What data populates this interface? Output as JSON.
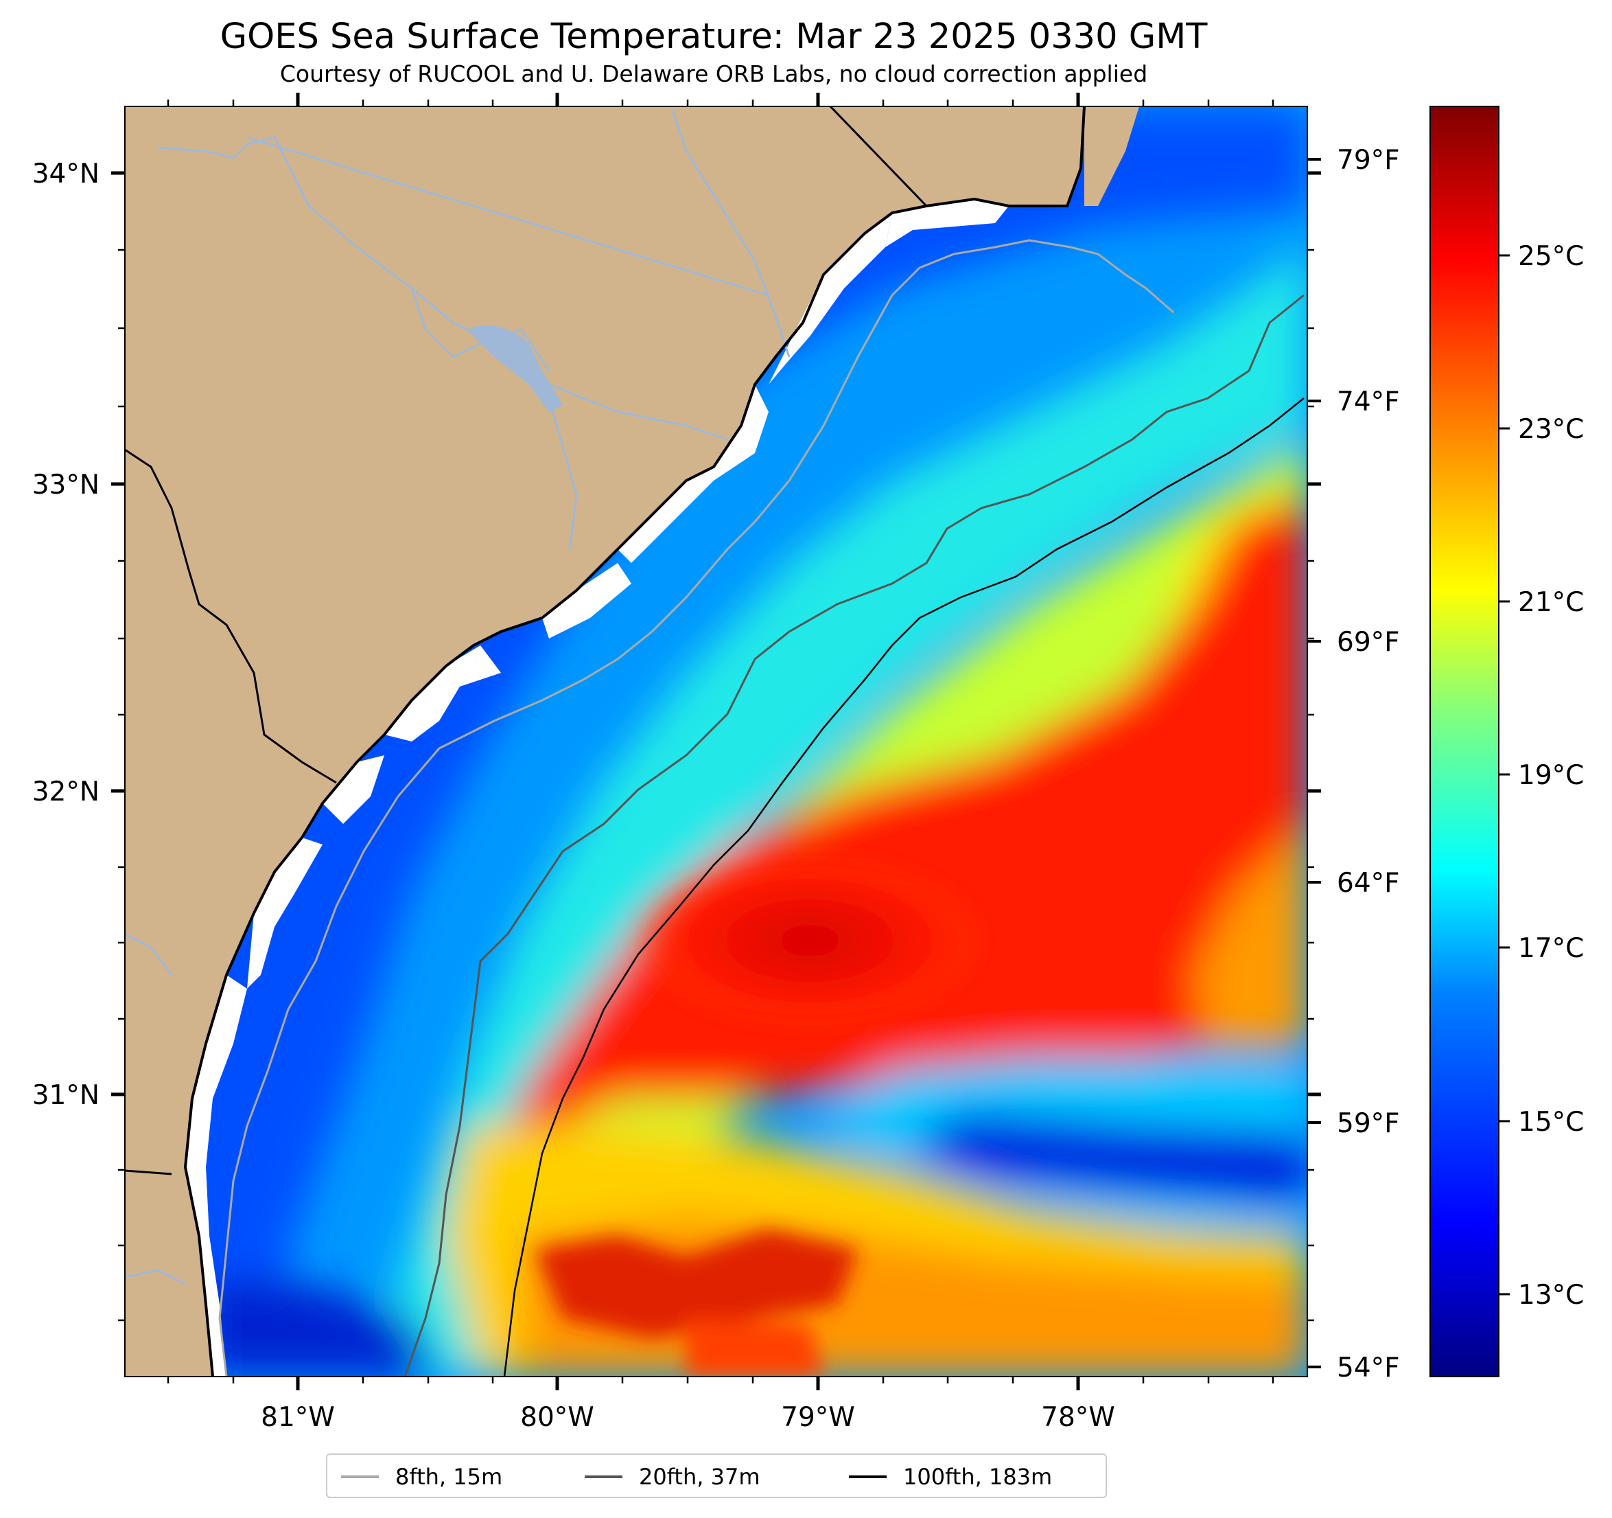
{
  "title": "GOES Sea Surface Temperature: Mar 23 2025 0330 GMT",
  "subtitle": "Courtesy of RUCOOL and U. Delaware ORB Labs, no cloud correction applied",
  "map": {
    "lat_labels": [
      "34°N",
      "33°N",
      "32°N",
      "31°N"
    ],
    "lon_labels": [
      "81°W",
      "80°W",
      "79°W",
      "78°W"
    ],
    "land_color": "#d2b48c",
    "coast_color": "#000000",
    "river_color": "#9fb8d8"
  },
  "colorbar": {
    "celsius_labels": [
      "25°C",
      "23°C",
      "21°C",
      "19°C",
      "17°C",
      "15°C",
      "13°C"
    ],
    "fahrenheit_labels": [
      "79°F",
      "74°F",
      "69°F",
      "64°F",
      "59°F",
      "54°F"
    ],
    "colors": [
      "#800000",
      "#ff0000",
      "#ff8000",
      "#ffff00",
      "#80ff80",
      "#00ffff",
      "#0080ff",
      "#0000ff",
      "#000080"
    ]
  },
  "legend": {
    "items": [
      {
        "label": "8fth, 15m",
        "color": "#aaaaaa"
      },
      {
        "label": "20fth, 37m",
        "color": "#555555"
      },
      {
        "label": "100fth, 183m",
        "color": "#000000"
      }
    ]
  }
}
